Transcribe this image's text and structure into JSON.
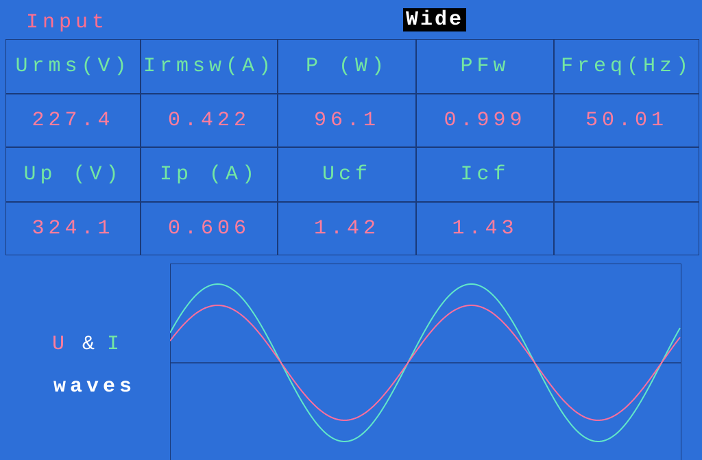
{
  "header": {
    "title": "Input",
    "mode": "Wide"
  },
  "table": {
    "rows": [
      [
        "Urms(V)",
        "Irmsw(A)",
        "P (W)",
        "PFw",
        "Freq(Hz)"
      ],
      [
        "227.4",
        "0.422",
        "96.1",
        "0.999",
        "50.01"
      ],
      [
        "Up (V)",
        "Ip (A)",
        "Ucf",
        "Icf"
      ],
      [
        "324.1",
        "0.606",
        "1.42",
        "1.43"
      ]
    ]
  },
  "waves": {
    "label_u": "U",
    "label_and": "&",
    "label_i": "I",
    "label_waves": "waves"
  }
}
